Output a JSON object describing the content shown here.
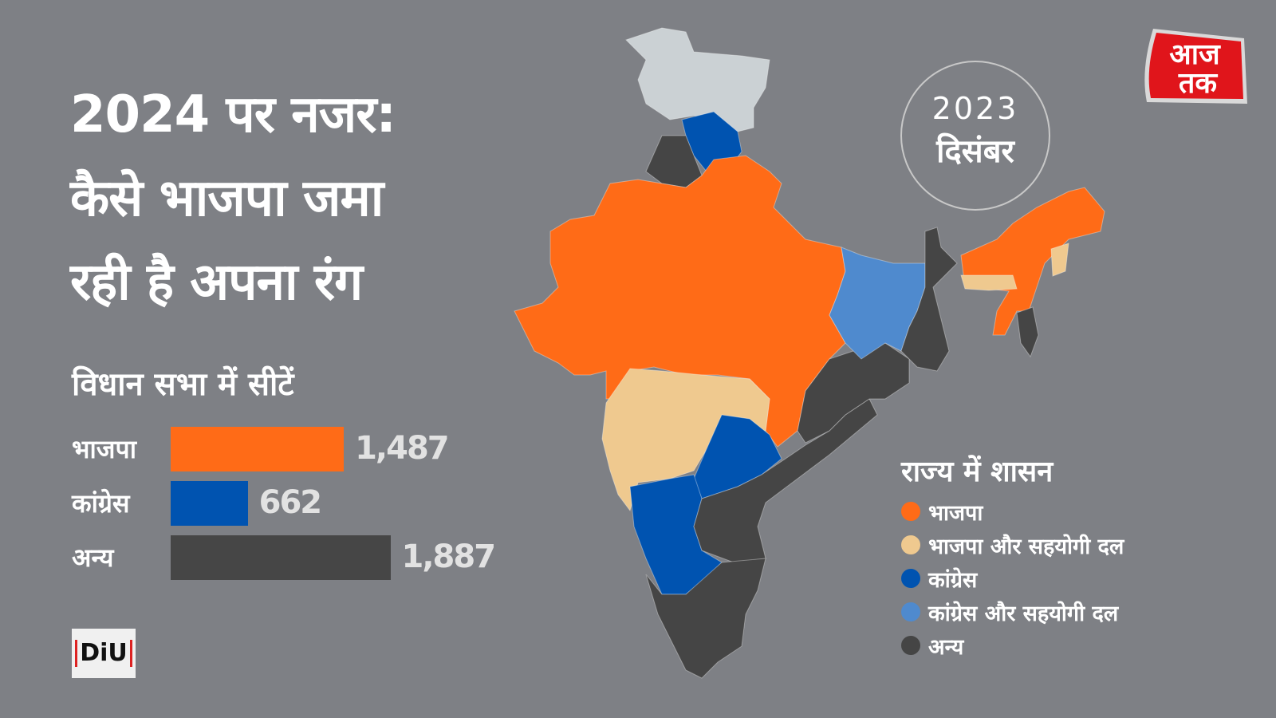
{
  "title_lines": [
    "2024 पर नजर:",
    "कैसे भाजपा जमा",
    "रही है अपना रंग"
  ],
  "date": {
    "year": "2023",
    "month": "दिसंबर"
  },
  "brand": {
    "logo_text": "आज तक",
    "diu_text": "DiU"
  },
  "chart_data": [
    {
      "type": "bar",
      "orientation": "horizontal",
      "title": "विधान सभा में सीटें",
      "categories": [
        "भाजपा",
        "कांग्रेस",
        "अन्य"
      ],
      "values": [
        1487,
        662,
        1887
      ],
      "value_labels": [
        "1,487",
        "662",
        "1,887"
      ],
      "colors": [
        "#ff6b17",
        "#0053b0",
        "#464646"
      ],
      "grid": false
    },
    {
      "type": "choropleth-map",
      "legend_title": "राज्य में शासन",
      "legend": [
        {
          "key": "bjp",
          "label": "भाजपा",
          "color": "#ff6b17"
        },
        {
          "key": "bjp_allies",
          "label": "भाजपा और सहयोगी दल",
          "color": "#efc98f"
        },
        {
          "key": "inc",
          "label": "कांग्रेस",
          "color": "#0053b0"
        },
        {
          "key": "inc_allies",
          "label": "कांग्रेस और सहयोगी दल",
          "color": "#4f8ace"
        },
        {
          "key": "other",
          "label": "अन्य",
          "color": "#454545"
        }
      ],
      "no_data_color": "#cbd1d4",
      "legend_placement": "bottom-right"
    }
  ]
}
